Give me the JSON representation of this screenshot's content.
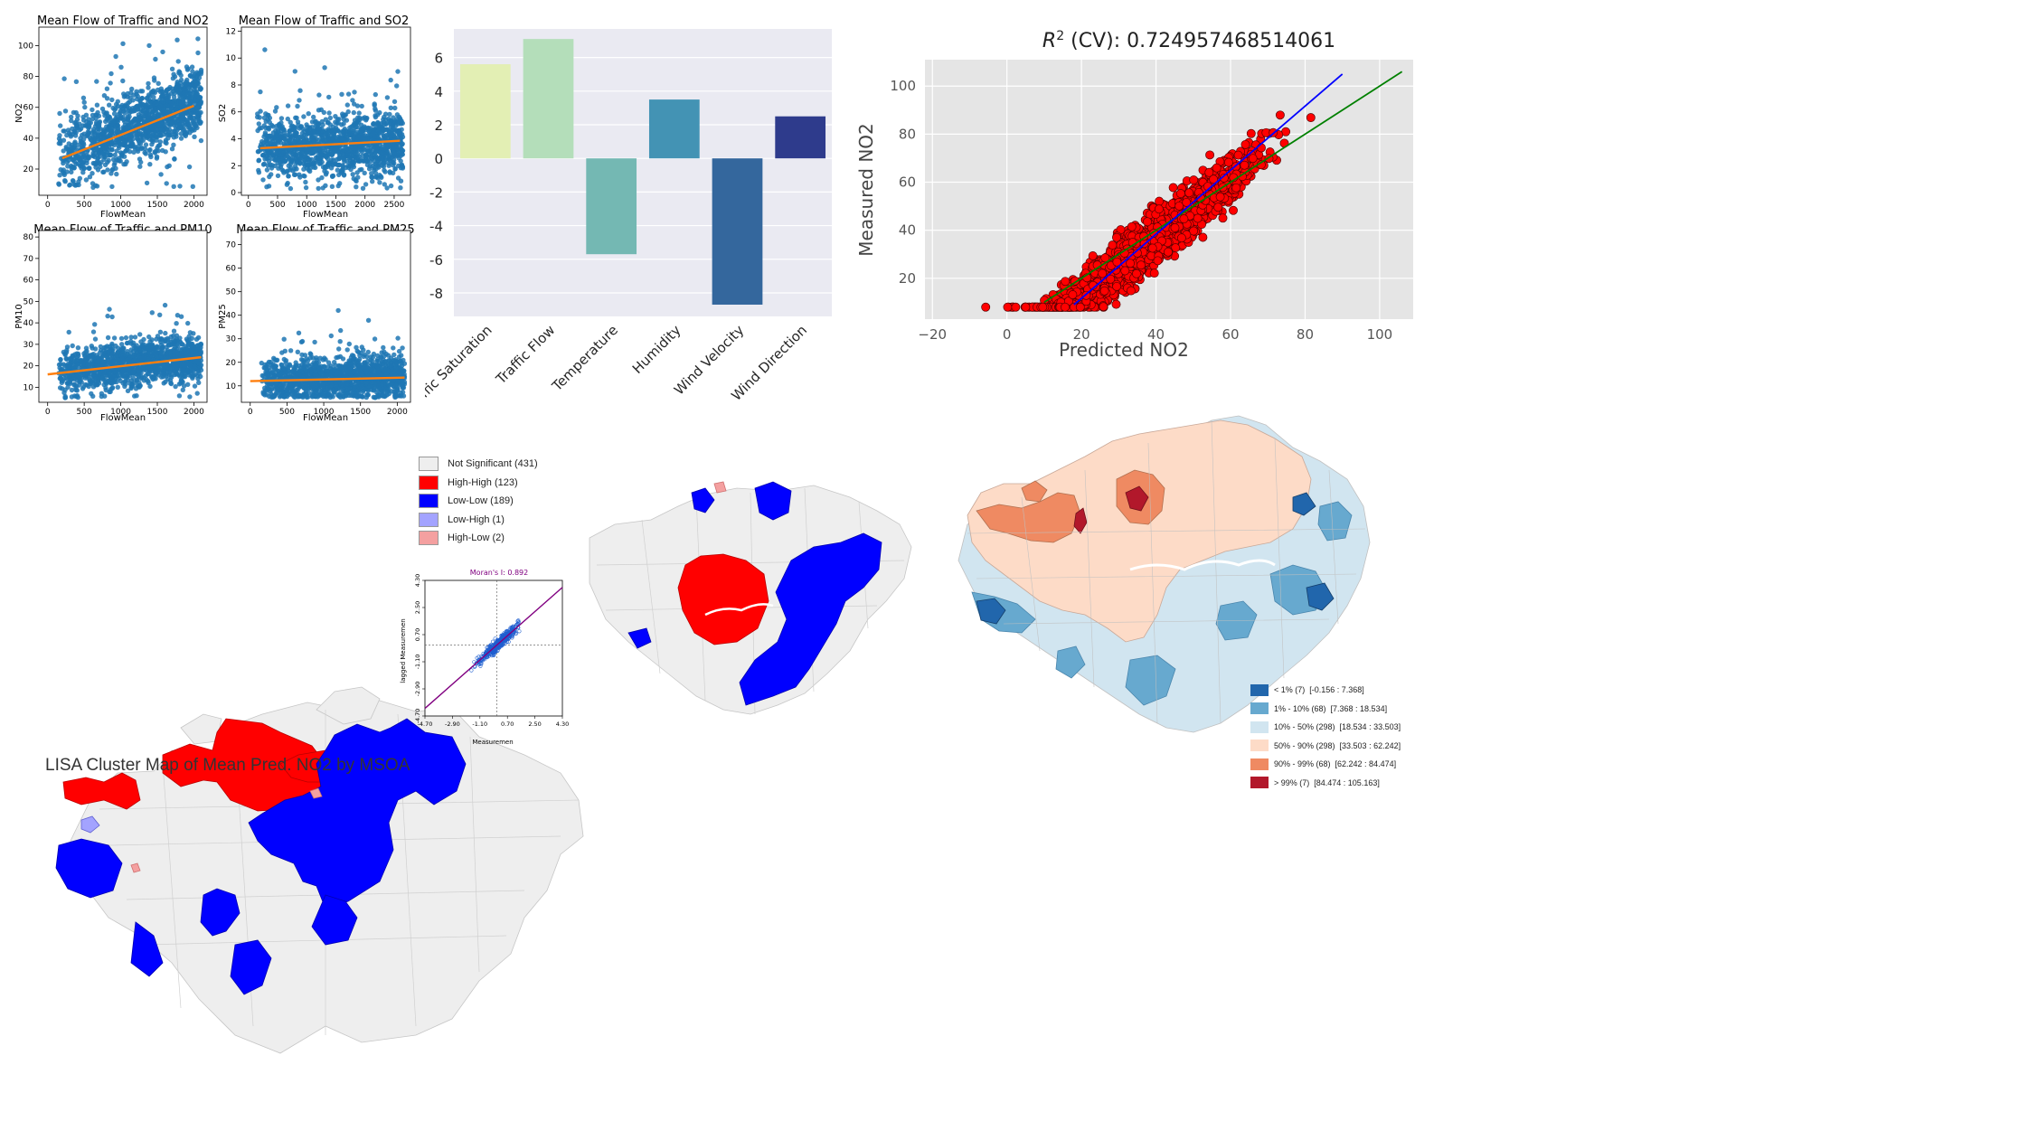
{
  "chart_data": [
    {
      "type": "scatter",
      "id": "flow_no2",
      "title": "Mean Flow of Traffic and NO2",
      "xlabel": "FlowMean",
      "ylabel": "NO2",
      "xlim": [
        -120,
        2180
      ],
      "ylim": [
        3,
        112
      ],
      "xticks": [
        0,
        500,
        1000,
        1500,
        2000
      ],
      "yticks": [
        20,
        40,
        60,
        80,
        100
      ],
      "trend": [
        [
          200,
          27
        ],
        [
          2000,
          61
        ]
      ],
      "point_count": 1400,
      "cloud": {
        "xmin": 150,
        "xmax": 2100,
        "ymin": 8,
        "ymax": 106,
        "base": 25,
        "slope": 0.019,
        "spread": 15
      }
    },
    {
      "type": "scatter",
      "id": "flow_so2",
      "title": "Mean Flow of Traffic and SO2",
      "xlabel": "FlowMean",
      "ylabel": "SO2",
      "xlim": [
        -120,
        2780
      ],
      "ylim": [
        -0.2,
        12.3
      ],
      "xticks": [
        0,
        500,
        1000,
        1500,
        2000,
        2500
      ],
      "yticks": [
        0,
        2,
        4,
        6,
        8,
        10,
        12
      ],
      "trend": [
        [
          200,
          3.3
        ],
        [
          2600,
          3.85
        ]
      ],
      "point_count": 1400,
      "cloud": {
        "xmin": 150,
        "xmax": 2650,
        "ymin": 0.3,
        "ymax": 11.7,
        "base": 3.3,
        "slope": 0.0002,
        "spread": 1.6
      }
    },
    {
      "type": "scatter",
      "id": "flow_pm10",
      "title": "Mean Flow of Traffic and PM10",
      "xlabel": "FlowMean",
      "ylabel": "PM10",
      "xlim": [
        -120,
        2180
      ],
      "ylim": [
        3,
        83
      ],
      "xticks": [
        0,
        500,
        1000,
        1500,
        2000
      ],
      "yticks": [
        10,
        20,
        30,
        40,
        50,
        60,
        70,
        80
      ],
      "trend": [
        [
          0,
          16
        ],
        [
          2100,
          24
        ]
      ],
      "point_count": 1400,
      "cloud": {
        "xmin": 150,
        "xmax": 2100,
        "ymin": 5,
        "ymax": 79,
        "base": 16,
        "slope": 0.004,
        "spread": 7
      }
    },
    {
      "type": "scatter",
      "id": "flow_pm25",
      "title": "Mean Flow of Traffic and PM25",
      "xlabel": "FlowMean",
      "ylabel": "PM25",
      "xlim": [
        -120,
        2180
      ],
      "ylim": [
        3,
        76
      ],
      "xticks": [
        0,
        500,
        1000,
        1500,
        2000
      ],
      "yticks": [
        10,
        20,
        30,
        40,
        50,
        60,
        70
      ],
      "trend": [
        [
          0,
          12
        ],
        [
          2100,
          13.5
        ]
      ],
      "point_count": 1400,
      "cloud": {
        "xmin": 150,
        "xmax": 2100,
        "ymin": 5,
        "ymax": 73,
        "base": 12,
        "slope": 0.001,
        "spread": 6
      }
    },
    {
      "type": "bar",
      "id": "coefficients",
      "categories": [
        "Traffic Saturation",
        "Traffic Flow",
        "Temperature",
        "Humidity",
        "Wind Velocity",
        "Wind Direction"
      ],
      "values": [
        5.6,
        7.1,
        -5.7,
        3.5,
        -8.7,
        2.5
      ],
      "colors": [
        "#e3efb4",
        "#b4deba",
        "#74b8b3",
        "#4393b4",
        "#34679d",
        "#2e3b8c"
      ],
      "ylim": [
        -9.4,
        7.7
      ],
      "yticks": [
        -8,
        -6,
        -4,
        -2,
        0,
        2,
        4,
        6
      ]
    },
    {
      "type": "scatter",
      "id": "cv_no2",
      "title_prefix": "R",
      "title_sup": "2",
      "title_suffix": " (CV): 0.724957468514061",
      "xlabel": "Predicted NO2",
      "ylabel": "Measured NO2",
      "xlim": [
        -22,
        109
      ],
      "ylim": [
        3,
        111
      ],
      "xticks": [
        -20,
        0,
        20,
        40,
        60,
        80,
        100
      ],
      "xtick_labels": [
        "−20",
        "0",
        "20",
        "40",
        "60",
        "80",
        "100"
      ],
      "yticks": [
        20,
        40,
        60,
        80,
        100
      ],
      "identity_line": [
        [
          10,
          10
        ],
        [
          106,
          106
        ]
      ],
      "fit_line": [
        [
          18,
          9
        ],
        [
          90,
          105
        ]
      ],
      "point_count": 1700,
      "cloud": {
        "xmin": -17,
        "xmax": 92,
        "slope": 1.22,
        "intercept": -12,
        "spread": 8,
        "ymin": 8,
        "ymax": 106
      }
    },
    {
      "type": "scatter",
      "id": "moran",
      "title": "Moran's I: 0.892",
      "xlabel": "Measuremen",
      "ylabel": "lagged Measuremen",
      "xlim": [
        -4.7,
        4.3
      ],
      "ylim": [
        -4.7,
        4.3
      ],
      "xticks": [
        -4.7,
        -2.9,
        -1.1,
        0.7,
        2.5,
        4.3
      ],
      "xtick_labels": [
        "-4.70",
        "-2.90",
        "-1.10",
        "0.70",
        "2.50",
        "4.30"
      ],
      "yticks": [
        -4.7,
        -2.9,
        -1.1,
        0.7,
        2.5,
        4.3
      ],
      "ytick_labels": [
        "-4.70",
        "-2.90",
        "-1.10",
        "0.70",
        "2.50",
        "4.30"
      ],
      "slope": 0.892,
      "point_count": 420
    }
  ],
  "lisa_map": {
    "caption": "LISA Cluster Map of Mean Pred. NO2 by MSOA",
    "legend": [
      {
        "label": "Not Significant (431)",
        "color": "#eeeeee"
      },
      {
        "label": "High-High (123)",
        "color": "#ff0000"
      },
      {
        "label": "Low-Low (189)",
        "color": "#0000ff"
      },
      {
        "label": "Low-High (1)",
        "color": "#a3a3ff"
      },
      {
        "label": "High-Low (2)",
        "color": "#f4a0a0"
      }
    ]
  },
  "quantile_map": {
    "legend": [
      {
        "label": "< 1% (7)  [-0.156 : 7.368]",
        "color": "#2166ac"
      },
      {
        "label": "1% - 10% (68)  [7.368 : 18.534]",
        "color": "#67a9cf"
      },
      {
        "label": "10% - 50% (298)  [18.534 : 33.503]",
        "color": "#d1e5f0"
      },
      {
        "label": "50% - 90% (298)  [33.503 : 62.242]",
        "color": "#fddbc7"
      },
      {
        "label": "90% - 99% (68)  [62.242 : 84.474]",
        "color": "#ef8a62"
      },
      {
        "label": "> 99% (7)  [84.474 : 105.163]",
        "color": "#b2182b"
      }
    ]
  }
}
